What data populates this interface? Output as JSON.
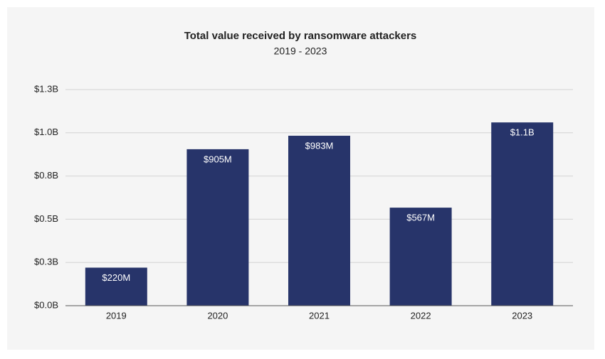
{
  "chart_data": {
    "type": "bar",
    "title": "Total value received by ransomware attackers",
    "subtitle": "2019 - 2023",
    "categories": [
      "2019",
      "2020",
      "2021",
      "2022",
      "2023"
    ],
    "values": [
      220000000,
      905000000,
      983000000,
      567000000,
      1060000000
    ],
    "value_labels": [
      "$220M",
      "$905M",
      "$983M",
      "$567M",
      "$1.1B"
    ],
    "color": "#27346a",
    "ylim": [
      0,
      1250000000
    ],
    "yticks": [
      {
        "value": 0,
        "label": "$0.0B"
      },
      {
        "value": 250000000,
        "label": "$0.3B"
      },
      {
        "value": 500000000,
        "label": "$0.5B"
      },
      {
        "value": 750000000,
        "label": "$0.8B"
      },
      {
        "value": 1000000000,
        "label": "$1.0B"
      },
      {
        "value": 1250000000,
        "label": "$1.3B"
      }
    ],
    "grid": true
  }
}
